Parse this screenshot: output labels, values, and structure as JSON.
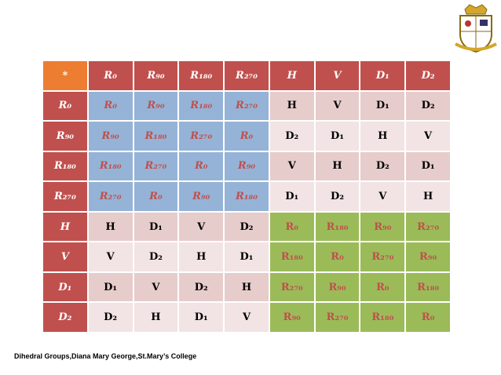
{
  "table": {
    "rows": [
      [
        "*",
        "R₀",
        "R₉₀",
        "R₁₈₀",
        "R₂₇₀",
        "H",
        "V",
        "D₁",
        "D₂"
      ],
      [
        "R₀",
        "R₀",
        "R₉₀",
        "R₁₈₀",
        "R₂₇₀",
        "H",
        "V",
        "D₁",
        "D₂"
      ],
      [
        "R₉₀",
        "R₉₀",
        "R₁₈₀",
        "R₂₇₀",
        "R₀",
        "D₂",
        "D₁",
        "H",
        "V"
      ],
      [
        "R₁₈₀",
        "R₁₈₀",
        "R₂₇₀",
        "R₀",
        "R₉₀",
        "V",
        "H",
        "D₂",
        "D₁"
      ],
      [
        "R₂₇₀",
        "R₂₇₀",
        "R₀",
        "R₉₀",
        "R₁₈₀",
        "D₁",
        "D₂",
        "V",
        "H"
      ],
      [
        "H",
        "H",
        "D₁",
        "V",
        "D₂",
        "R₀",
        "R₁₈₀",
        "R₉₀",
        "R₂₇₀"
      ],
      [
        "V",
        "V",
        "D₂",
        "H",
        "D₁",
        "R₁₈₀",
        "R₀",
        "R₂₇₀",
        "R₉₀"
      ],
      [
        "D₁",
        "D₁",
        "V",
        "D₂",
        "H",
        "R₂₇₀",
        "R₉₀",
        "R₀",
        "R₁₈₀"
      ],
      [
        "D₂",
        "D₂",
        "H",
        "D₁",
        "V",
        "R₉₀",
        "R₂₇₀",
        "R₁₈₀",
        "R₀"
      ]
    ]
  },
  "footer": "Dihedral Groups,Diana Mary George,St.Mary’s College"
}
